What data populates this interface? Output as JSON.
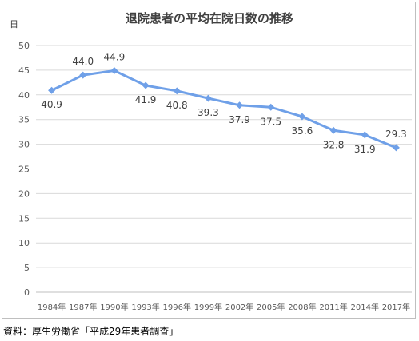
{
  "chart_data": {
    "type": "line",
    "title": "退院患者の平均在院日数の推移",
    "ylabel": "日",
    "xlabel": "",
    "categories": [
      "1984年",
      "1987年",
      "1990年",
      "1993年",
      "1996年",
      "1999年",
      "2002年",
      "2005年",
      "2008年",
      "2011年",
      "2014年",
      "2017年"
    ],
    "series": [
      {
        "values": [
          40.9,
          44.0,
          44.9,
          41.9,
          40.8,
          39.3,
          37.9,
          37.5,
          35.6,
          32.8,
          31.9,
          29.3
        ]
      }
    ],
    "data_labels": [
      "40.9",
      "44.0",
      "44.9",
      "41.9",
      "40.8",
      "39.3",
      "37.9",
      "37.5",
      "35.6",
      "32.8",
      "31.9",
      "29.3"
    ],
    "ylim": [
      0,
      50
    ],
    "yticks": [
      "0",
      "5",
      "10",
      "15",
      "20",
      "25",
      "30",
      "35",
      "40",
      "45",
      "50"
    ],
    "grid": true,
    "legend": "none",
    "line_color": "#6fa0e8",
    "source": "資料：厚生労働省「平成29年患者調査」"
  }
}
